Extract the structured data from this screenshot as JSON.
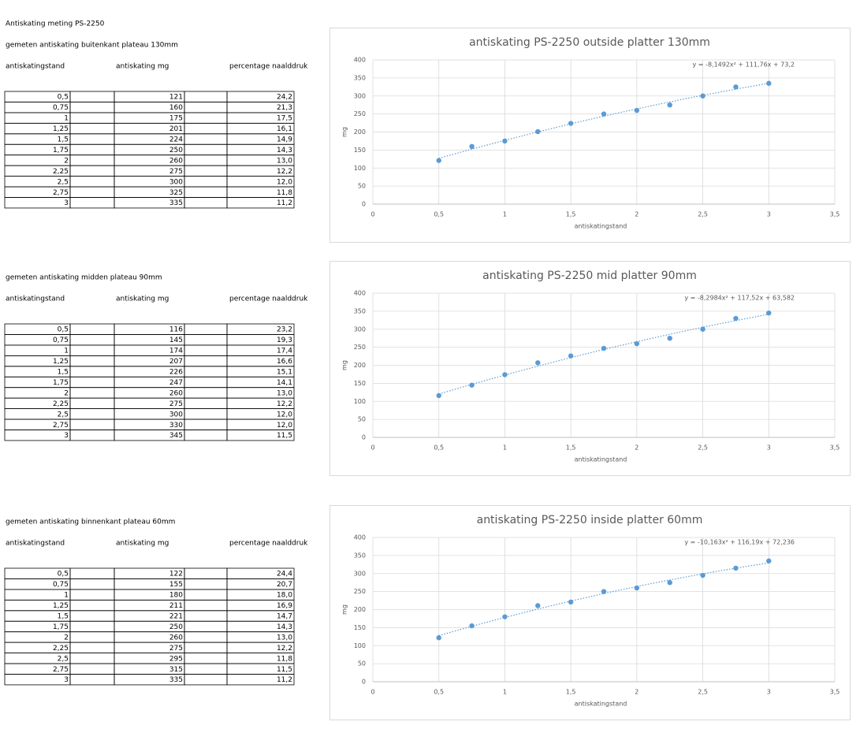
{
  "title": "Antiskating meting PS-2250",
  "sections": [
    {
      "heading": "gemeten antiskating buitenkant plateau 130mm",
      "columns": [
        "antiskatingstand",
        "antiskating mg",
        "percentage naalddruk"
      ],
      "rows": [
        [
          "0,5",
          "121",
          "24,2"
        ],
        [
          "0,75",
          "160",
          "21,3"
        ],
        [
          "1",
          "175",
          "17,5"
        ],
        [
          "1,25",
          "201",
          "16,1"
        ],
        [
          "1,5",
          "224",
          "14,9"
        ],
        [
          "1,75",
          "250",
          "14,3"
        ],
        [
          "2",
          "260",
          "13,0"
        ],
        [
          "2,25",
          "275",
          "12,2"
        ],
        [
          "2,5",
          "300",
          "12,0"
        ],
        [
          "2,75",
          "325",
          "11,8"
        ],
        [
          "3",
          "335",
          "11,2"
        ]
      ]
    },
    {
      "heading": "gemeten antiskating midden plateau 90mm",
      "columns": [
        "antiskatingstand",
        "antiskating mg",
        "percentage naalddruk"
      ],
      "rows": [
        [
          "0,5",
          "116",
          "23,2"
        ],
        [
          "0,75",
          "145",
          "19,3"
        ],
        [
          "1",
          "174",
          "17,4"
        ],
        [
          "1,25",
          "207",
          "16,6"
        ],
        [
          "1,5",
          "226",
          "15,1"
        ],
        [
          "1,75",
          "247",
          "14,1"
        ],
        [
          "2",
          "260",
          "13,0"
        ],
        [
          "2,25",
          "275",
          "12,2"
        ],
        [
          "2,5",
          "300",
          "12,0"
        ],
        [
          "2,75",
          "330",
          "12,0"
        ],
        [
          "3",
          "345",
          "11,5"
        ]
      ]
    },
    {
      "heading": "gemeten antiskating binnenkant plateau 60mm",
      "columns": [
        "antiskatingstand",
        "antiskating mg",
        "percentage naalddruk"
      ],
      "rows": [
        [
          "0,5",
          "122",
          "24,4"
        ],
        [
          "0,75",
          "155",
          "20,7"
        ],
        [
          "1",
          "180",
          "18,0"
        ],
        [
          "1,25",
          "211",
          "16,9"
        ],
        [
          "1,5",
          "221",
          "14,7"
        ],
        [
          "1,75",
          "250",
          "14,3"
        ],
        [
          "2",
          "260",
          "13,0"
        ],
        [
          "2,25",
          "275",
          "12,2"
        ],
        [
          "2,5",
          "295",
          "11,8"
        ],
        [
          "2,75",
          "315",
          "11,5"
        ],
        [
          "3",
          "335",
          "11,2"
        ]
      ]
    }
  ],
  "chart_data": [
    {
      "type": "scatter",
      "title": "antiskating PS-2250 outside platter 130mm",
      "x_label": "antiskatingstand",
      "y_label": "mg",
      "x": [
        0.5,
        0.75,
        1,
        1.25,
        1.5,
        1.75,
        2,
        2.25,
        2.5,
        2.75,
        3
      ],
      "series": [
        {
          "color": "#5b9bd5",
          "values": [
            121,
            160,
            175,
            201,
            224,
            250,
            260,
            275,
            300,
            325,
            335
          ]
        }
      ],
      "trendline": {
        "label": "y = -8,1492x² + 111,76x + 73,2",
        "coefficients": [
          -8.1492,
          111.76,
          73.2
        ],
        "color": "#5b9bd5"
      },
      "xlim": [
        0,
        3.5
      ],
      "ylim": [
        0,
        400
      ],
      "xticks": [
        0,
        {
          "value": 0.5,
          "label": "0,5"
        },
        1,
        {
          "value": 1.5,
          "label": "1,5"
        },
        2,
        {
          "value": 2.5,
          "label": "2,5"
        },
        3,
        {
          "value": 3.5,
          "label": "3,5"
        }
      ],
      "yticks": [
        0,
        50,
        100,
        150,
        200,
        250,
        300,
        350,
        400
      ],
      "grid": true
    },
    {
      "type": "scatter",
      "title": "antiskating PS-2250 mid platter 90mm",
      "x_label": "antiskatingstand",
      "y_label": "mg",
      "x": [
        0.5,
        0.75,
        1,
        1.25,
        1.5,
        1.75,
        2,
        2.25,
        2.5,
        2.75,
        3
      ],
      "series": [
        {
          "color": "#5b9bd5",
          "values": [
            116,
            145,
            174,
            207,
            226,
            247,
            260,
            275,
            300,
            330,
            345
          ]
        }
      ],
      "trendline": {
        "label": "y = -8,2984x² + 117,52x + 63,582",
        "coefficients": [
          -8.2984,
          117.52,
          63.582
        ],
        "color": "#5b9bd5"
      },
      "xlim": [
        0,
        3.5
      ],
      "ylim": [
        0,
        400
      ],
      "xticks": [
        0,
        {
          "value": 0.5,
          "label": "0,5"
        },
        1,
        {
          "value": 1.5,
          "label": "1,5"
        },
        2,
        {
          "value": 2.5,
          "label": "2,5"
        },
        3,
        {
          "value": 3.5,
          "label": "3,5"
        }
      ],
      "yticks": [
        0,
        50,
        100,
        150,
        200,
        250,
        300,
        350,
        400
      ],
      "grid": true
    },
    {
      "type": "scatter",
      "title": "antiskating PS-2250 inside platter 60mm",
      "x_label": "antiskatingstand",
      "y_label": "mg",
      "x": [
        0.5,
        0.75,
        1,
        1.25,
        1.5,
        1.75,
        2,
        2.25,
        2.5,
        2.75,
        3
      ],
      "series": [
        {
          "color": "#5b9bd5",
          "values": [
            122,
            155,
            180,
            211,
            221,
            250,
            260,
            275,
            295,
            315,
            335
          ]
        }
      ],
      "trendline": {
        "label": "y = -10,163x² + 116,19x + 72,236",
        "coefficients": [
          -10.163,
          116.19,
          72.236
        ],
        "color": "#5b9bd5"
      },
      "xlim": [
        0,
        3.5
      ],
      "ylim": [
        0,
        400
      ],
      "xticks": [
        0,
        {
          "value": 0.5,
          "label": "0,5"
        },
        1,
        {
          "value": 1.5,
          "label": "1,5"
        },
        2,
        {
          "value": 2.5,
          "label": "2,5"
        },
        3,
        {
          "value": 3.5,
          "label": "3,5"
        }
      ],
      "yticks": [
        0,
        50,
        100,
        150,
        200,
        250,
        300,
        350,
        400
      ],
      "grid": true
    }
  ]
}
